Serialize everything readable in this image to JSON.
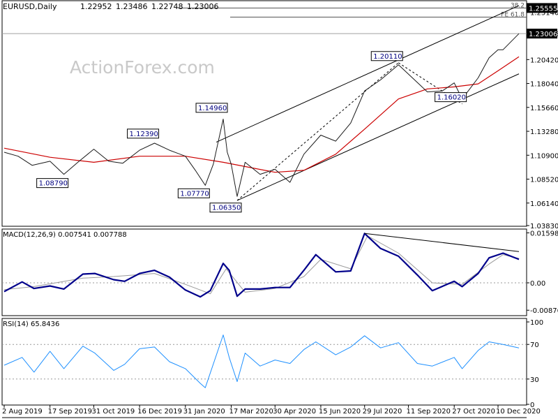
{
  "chart_data": [
    {
      "type": "candlestick",
      "symbol": "EURUSD",
      "timeframe": "Daily",
      "title": "EURUSD,Daily",
      "ohlc": {
        "open": "1.22952",
        "high": "1.23486",
        "low": "1.22748",
        "close": "1.23006"
      },
      "watermark": "ActionForex.com",
      "ylim": [
        1.0383,
        1.2628
      ],
      "y_ticks": [
        "1.25140",
        "1.23006",
        "1.20420",
        "1.18040",
        "1.15660",
        "1.13280",
        "1.10900",
        "1.08520",
        "1.06140",
        "1.03830"
      ],
      "price_labels": [
        {
          "text": "1.25555",
          "value": 1.25555,
          "highlight": true
        },
        {
          "text": "1.23006",
          "value": 1.23006,
          "highlight": true
        }
      ],
      "fib_levels": [
        {
          "label": "38.2",
          "value": 1.2555
        },
        {
          "label": "FE 61.8",
          "value": 1.2465
        }
      ],
      "swing_labels": [
        {
          "text": "1.08790",
          "date": "2019-10-01",
          "value": 1.0879
        },
        {
          "text": "1.12390",
          "date": "2019-12-31",
          "value": 1.1239
        },
        {
          "text": "1.07770",
          "date": "2020-02-20",
          "value": 1.0777
        },
        {
          "text": "1.14960",
          "date": "2020-03-09",
          "value": 1.1496
        },
        {
          "text": "1.06350",
          "date": "2020-03-23",
          "value": 1.0635
        },
        {
          "text": "1.20110",
          "date": "2020-09-01",
          "value": 1.2011
        },
        {
          "text": "1.16020",
          "date": "2020-11-04",
          "value": 1.1602
        }
      ],
      "series": [
        {
          "name": "EURUSD",
          "color": "#1a1a1a",
          "points": [
            [
              "2019-08-02",
              1.112
            ],
            [
              "2019-08-16",
              1.108
            ],
            [
              "2019-08-30",
              1.099
            ],
            [
              "2019-09-17",
              1.103
            ],
            [
              "2019-10-01",
              1.09
            ],
            [
              "2019-10-15",
              1.102
            ],
            [
              "2019-10-31",
              1.115
            ],
            [
              "2019-11-15",
              1.103
            ],
            [
              "2019-11-29",
              1.101
            ],
            [
              "2019-12-16",
              1.114
            ],
            [
              "2019-12-31",
              1.121
            ],
            [
              "2020-01-15",
              1.114
            ],
            [
              "2020-01-31",
              1.108
            ],
            [
              "2020-02-10",
              1.094
            ],
            [
              "2020-02-20",
              1.079
            ],
            [
              "2020-02-28",
              1.1
            ],
            [
              "2020-03-09",
              1.145
            ],
            [
              "2020-03-13",
              1.112
            ],
            [
              "2020-03-17",
              1.1
            ],
            [
              "2020-03-23",
              1.068
            ],
            [
              "2020-03-31",
              1.102
            ],
            [
              "2020-04-15",
              1.09
            ],
            [
              "2020-04-30",
              1.095
            ],
            [
              "2020-05-15",
              1.082
            ],
            [
              "2020-05-29",
              1.11
            ],
            [
              "2020-06-15",
              1.129
            ],
            [
              "2020-06-30",
              1.123
            ],
            [
              "2020-07-15",
              1.141
            ],
            [
              "2020-07-29",
              1.173
            ],
            [
              "2020-08-14",
              1.184
            ],
            [
              "2020-09-01",
              1.199
            ],
            [
              "2020-09-15",
              1.186
            ],
            [
              "2020-09-30",
              1.172
            ],
            [
              "2020-10-15",
              1.173
            ],
            [
              "2020-10-27",
              1.181
            ],
            [
              "2020-11-04",
              1.165
            ],
            [
              "2020-11-20",
              1.186
            ],
            [
              "2020-12-01",
              1.206
            ],
            [
              "2020-12-10",
              1.214
            ],
            [
              "2020-12-15",
              1.214
            ],
            [
              "2020-12-23",
              1.222
            ],
            [
              "2020-12-31",
              1.23
            ]
          ]
        },
        {
          "name": "MA",
          "color": "#cc0000",
          "points": [
            [
              "2019-08-02",
              1.116
            ],
            [
              "2019-09-17",
              1.107
            ],
            [
              "2019-10-31",
              1.102
            ],
            [
              "2019-12-16",
              1.108
            ],
            [
              "2020-01-31",
              1.108
            ],
            [
              "2020-03-09",
              1.102
            ],
            [
              "2020-04-30",
              1.092
            ],
            [
              "2020-05-29",
              1.094
            ],
            [
              "2020-06-30",
              1.11
            ],
            [
              "2020-07-29",
              1.135
            ],
            [
              "2020-09-01",
              1.165
            ],
            [
              "2020-09-30",
              1.175
            ],
            [
              "2020-10-27",
              1.177
            ],
            [
              "2020-11-20",
              1.18
            ],
            [
              "2020-12-10",
              1.193
            ],
            [
              "2020-12-31",
              1.207
            ]
          ]
        }
      ],
      "trendlines": [
        {
          "name": "channel-top",
          "from": [
            "2020-03-02",
            1.122
          ],
          "to": [
            "2020-12-31",
            1.258
          ]
        },
        {
          "name": "channel-bottom",
          "from": [
            "2020-03-23",
            1.064
          ],
          "to": [
            "2020-12-31",
            1.19
          ]
        },
        {
          "name": "dashed-1",
          "from": [
            "2020-03-23",
            1.064
          ],
          "to": [
            "2020-09-01",
            1.201
          ]
        },
        {
          "name": "dashed-2",
          "from": [
            "2020-09-01",
            1.201
          ],
          "to": [
            "2020-11-04",
            1.16
          ]
        }
      ]
    },
    {
      "type": "line",
      "title": "MACD(12,26,9) 0.007541 0.007788",
      "ylim": [
        -0.0105,
        0.0172
      ],
      "y_ticks": [
        "0.015983",
        "0.00",
        "-0.008762"
      ],
      "series": [
        {
          "name": "MACD",
          "color": "#00008b",
          "points": [
            [
              "2019-08-02",
              -0.0028
            ],
            [
              "2019-08-20",
              0.0003
            ],
            [
              "2019-09-01",
              -0.0018
            ],
            [
              "2019-09-17",
              -0.001
            ],
            [
              "2019-10-01",
              -0.002
            ],
            [
              "2019-10-20",
              0.0028
            ],
            [
              "2019-11-01",
              0.003
            ],
            [
              "2019-11-20",
              0.001
            ],
            [
              "2019-12-01",
              0.0005
            ],
            [
              "2019-12-16",
              0.003
            ],
            [
              "2019-12-31",
              0.004
            ],
            [
              "2020-01-15",
              0.0018
            ],
            [
              "2020-01-31",
              -0.0023
            ],
            [
              "2020-02-15",
              -0.0045
            ],
            [
              "2020-02-25",
              -0.0025
            ],
            [
              "2020-03-09",
              0.0062
            ],
            [
              "2020-03-15",
              0.004
            ],
            [
              "2020-03-23",
              -0.0043
            ],
            [
              "2020-03-31",
              -0.002
            ],
            [
              "2020-04-15",
              -0.002
            ],
            [
              "2020-04-30",
              -0.0015
            ],
            [
              "2020-05-15",
              -0.0015
            ],
            [
              "2020-05-29",
              0.004
            ],
            [
              "2020-06-10",
              0.009
            ],
            [
              "2020-06-30",
              0.0035
            ],
            [
              "2020-07-15",
              0.0038
            ],
            [
              "2020-07-29",
              0.0158
            ],
            [
              "2020-08-14",
              0.011
            ],
            [
              "2020-09-01",
              0.0085
            ],
            [
              "2020-09-20",
              0.0025
            ],
            [
              "2020-10-05",
              -0.0025
            ],
            [
              "2020-10-27",
              0.0005
            ],
            [
              "2020-11-04",
              -0.0012
            ],
            [
              "2020-11-20",
              0.003
            ],
            [
              "2020-12-01",
              0.008
            ],
            [
              "2020-12-15",
              0.0095
            ],
            [
              "2020-12-31",
              0.0075
            ]
          ]
        },
        {
          "name": "Signal",
          "color": "#9a9a9a",
          "points": [
            [
              "2019-08-02",
              -0.0022
            ],
            [
              "2019-09-01",
              -0.0012
            ],
            [
              "2019-10-20",
              0.0015
            ],
            [
              "2019-11-20",
              0.002
            ],
            [
              "2019-12-31",
              0.003
            ],
            [
              "2020-01-31",
              -0.0005
            ],
            [
              "2020-02-25",
              -0.0035
            ],
            [
              "2020-03-12",
              0.0045
            ],
            [
              "2020-03-31",
              -0.003
            ],
            [
              "2020-04-30",
              -0.0018
            ],
            [
              "2020-05-29",
              0.002
            ],
            [
              "2020-06-15",
              0.0075
            ],
            [
              "2020-07-15",
              0.0045
            ],
            [
              "2020-08-01",
              0.015
            ],
            [
              "2020-09-01",
              0.0095
            ],
            [
              "2020-10-05",
              0.0
            ],
            [
              "2020-11-04",
              -0.0005
            ],
            [
              "2020-12-01",
              0.006
            ],
            [
              "2020-12-15",
              0.009
            ],
            [
              "2020-12-31",
              0.0078
            ]
          ]
        }
      ],
      "trendlines": [
        {
          "name": "macd-divergence",
          "from": [
            "2020-07-29",
            0.0158
          ],
          "to": [
            "2020-12-31",
            0.01
          ]
        }
      ]
    },
    {
      "type": "line",
      "title": "RSI(14) 65.8436",
      "ylim": [
        0,
        100
      ],
      "y_ticks": [
        "100",
        "70",
        "30",
        "0"
      ],
      "levels": [
        70,
        30
      ],
      "series": [
        {
          "name": "RSI",
          "color": "#1e90ff",
          "points": [
            [
              "2019-08-02",
              46
            ],
            [
              "2019-08-20",
              55
            ],
            [
              "2019-09-01",
              38
            ],
            [
              "2019-09-17",
              62
            ],
            [
              "2019-10-01",
              42
            ],
            [
              "2019-10-20",
              68
            ],
            [
              "2019-11-01",
              60
            ],
            [
              "2019-11-20",
              40
            ],
            [
              "2019-12-01",
              47
            ],
            [
              "2019-12-16",
              65
            ],
            [
              "2019-12-31",
              67
            ],
            [
              "2020-01-15",
              50
            ],
            [
              "2020-01-31",
              42
            ],
            [
              "2020-02-15",
              25
            ],
            [
              "2020-02-20",
              20
            ],
            [
              "2020-03-09",
              81
            ],
            [
              "2020-03-15",
              55
            ],
            [
              "2020-03-23",
              27
            ],
            [
              "2020-03-31",
              60
            ],
            [
              "2020-04-15",
              45
            ],
            [
              "2020-04-30",
              52
            ],
            [
              "2020-05-15",
              48
            ],
            [
              "2020-05-29",
              64
            ],
            [
              "2020-06-10",
              73
            ],
            [
              "2020-06-30",
              58
            ],
            [
              "2020-07-15",
              67
            ],
            [
              "2020-07-29",
              80
            ],
            [
              "2020-08-14",
              66
            ],
            [
              "2020-09-01",
              72
            ],
            [
              "2020-09-20",
              48
            ],
            [
              "2020-10-05",
              45
            ],
            [
              "2020-10-27",
              55
            ],
            [
              "2020-11-04",
              42
            ],
            [
              "2020-11-20",
              63
            ],
            [
              "2020-12-01",
              73
            ],
            [
              "2020-12-15",
              70
            ],
            [
              "2020-12-31",
              66
            ]
          ]
        }
      ]
    }
  ],
  "x_axis": {
    "labels": [
      {
        "text": "2 Aug 2019",
        "date": "2019-08-02"
      },
      {
        "text": "17 Sep 2019",
        "date": "2019-09-17"
      },
      {
        "text": "31 Oct 2019",
        "date": "2019-10-31"
      },
      {
        "text": "16 Dec 2019",
        "date": "2019-12-16"
      },
      {
        "text": "31 Jan 2020",
        "date": "2020-01-31"
      },
      {
        "text": "17 Mar 2020",
        "date": "2020-03-17"
      },
      {
        "text": "30 Apr 2020",
        "date": "2020-04-30"
      },
      {
        "text": "15 Jun 2020",
        "date": "2020-06-15"
      },
      {
        "text": "29 Jul 2020",
        "date": "2020-07-29"
      },
      {
        "text": "11 Sep 2020",
        "date": "2020-09-11"
      },
      {
        "text": "27 Oct 2020",
        "date": "2020-10-27"
      },
      {
        "text": "10 Dec 2020",
        "date": "2020-12-10"
      }
    ]
  }
}
